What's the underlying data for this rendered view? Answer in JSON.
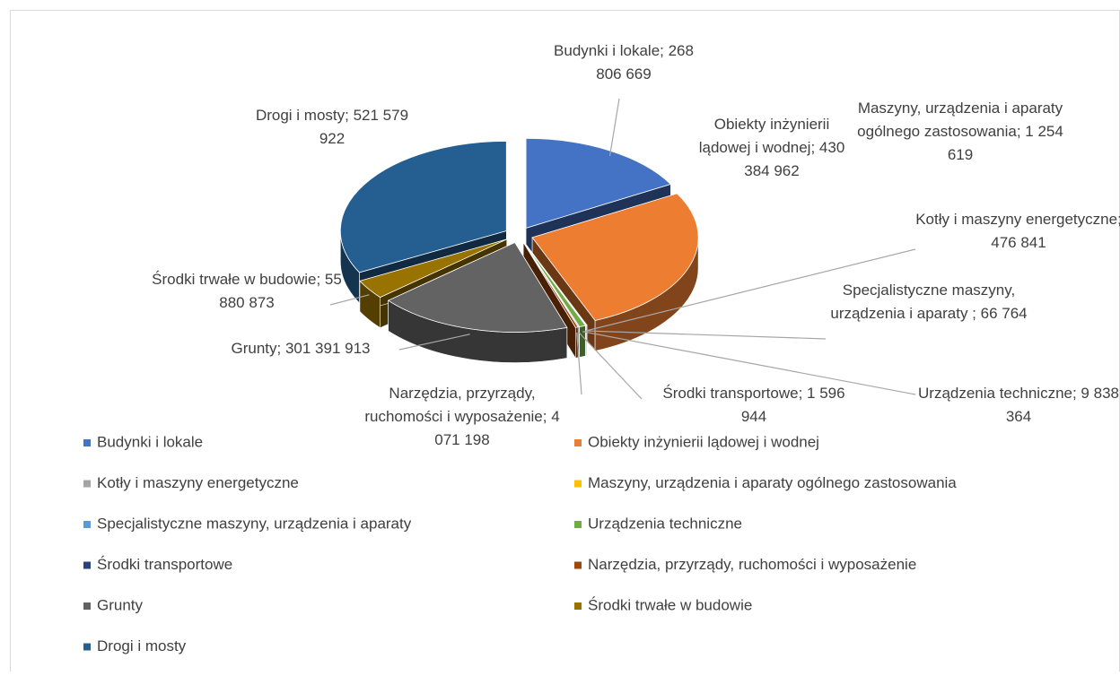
{
  "chart_data": {
    "type": "pie3d",
    "categories": [
      "Budynki i lokale",
      "Obiekty inżynierii lądowej i wodnej",
      "Kotły i maszyny energetyczne",
      "Maszyny, urządzenia i aparaty ogólnego zastosowania",
      "Specjalistyczne maszyny, urządzenia i aparaty",
      "Urządzenia techniczne",
      "Środki transportowe",
      "Narzędzia, przyrządy, ruchomości i wyposażenie",
      "Grunty",
      "Środki trwałe w budowie",
      "Drogi i mosty"
    ],
    "values": [
      268806669,
      430384962,
      476841,
      1254619,
      66764,
      9838364,
      1596944,
      4071198,
      301391913,
      55880873,
      521579922
    ],
    "value_labels": [
      "Budynki i lokale; 268 806 669",
      "Obiekty inżynierii lądowej i wodnej; 430 384 962",
      "Kotły i maszyny energetyczne; 476 841",
      "Maszyny, urządzenia i aparaty ogólnego zastosowania; 1 254 619",
      "Specjalistyczne maszyny, urządzenia i aparaty ; 66 764",
      "Urządzenia techniczne; 9 838 364",
      "Środki transportowe; 1 596 944",
      "Narzędzia, przyrządy, ruchomości i wyposażenie; 4 071 198",
      "Grunty; 301 391 913",
      "Środki trwałe w budowie; 55 880 873",
      "Drogi i mosty; 521 579 922"
    ],
    "colors": [
      "#4472c4",
      "#ed7d31",
      "#a5a5a5",
      "#ffc000",
      "#5b9bd5",
      "#70ad47",
      "#264478",
      "#9e480e",
      "#636363",
      "#997300",
      "#255e91"
    ],
    "legend": "bottom"
  }
}
